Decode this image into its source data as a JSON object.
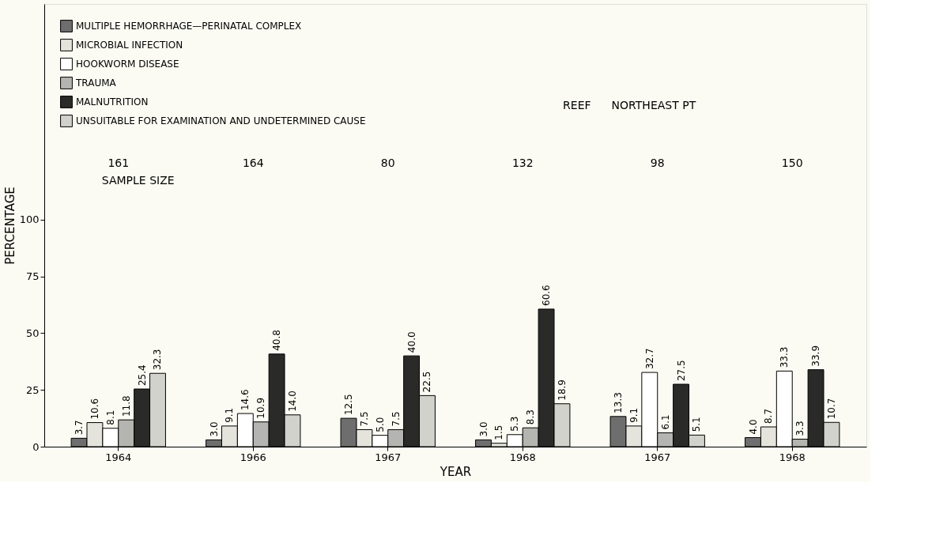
{
  "chart_data": {
    "type": "bar",
    "categories": [
      "1964",
      "1966",
      "1967",
      "1968",
      "1967",
      "1968"
    ],
    "series": [
      {
        "name": "MULTIPLE HEMORRHAGE—PERINATAL COMPLEX",
        "color": "#6e6e6e",
        "values": [
          3.7,
          3.0,
          12.5,
          3.0,
          13.3,
          4.0
        ],
        "value_labels": [
          "3.7",
          "3.0",
          "12.5",
          "3.0",
          "13.3",
          "4.0"
        ]
      },
      {
        "name": "MICROBIAL INFECTION",
        "color": "#e4e4dc",
        "values": [
          10.6,
          9.1,
          7.5,
          1.5,
          9.1,
          8.7
        ],
        "value_labels": [
          "10.6",
          "9.1",
          "7.5",
          "1.5",
          "9.1",
          "8.7"
        ]
      },
      {
        "name": "HOOKWORM DISEASE",
        "color": "#ffffff",
        "values": [
          8.1,
          14.6,
          5.0,
          5.3,
          32.7,
          33.3
        ],
        "value_labels": [
          "8.1",
          "14.6",
          "5.0",
          "5.3",
          "32.7",
          "33.3"
        ]
      },
      {
        "name": "TRAUMA",
        "color": "#b4b4b0",
        "values": [
          11.8,
          10.9,
          7.5,
          8.3,
          6.1,
          3.3
        ],
        "value_labels": [
          "11.8",
          "10.9",
          "7.5",
          "8.3",
          "6.1",
          "3.3"
        ]
      },
      {
        "name": "MALNUTRITION",
        "color": "#2a2a28",
        "values": [
          25.4,
          40.8,
          40.0,
          60.6,
          27.5,
          33.9
        ],
        "value_labels": [
          "25.4",
          "40.8",
          "40.0",
          "60.6",
          "27.5",
          "33.9"
        ]
      },
      {
        "name": "UNSUITABLE FOR EXAMINATION AND UNDETERMINED CAUSE",
        "color": "#d2d2cc",
        "values": [
          32.3,
          14.0,
          22.5,
          18.9,
          5.1,
          10.7
        ],
        "value_labels": [
          "32.3",
          "14.0",
          "22.5",
          "18.9",
          "5.1",
          "10.7"
        ]
      }
    ],
    "xlabel": "YEAR",
    "ylabel": "PERCENTAGE",
    "ylim": [
      0,
      195
    ],
    "yticks": [
      0,
      25,
      50,
      75,
      100
    ],
    "grid": false,
    "legend": "top left",
    "annotations": [
      "161",
      "164",
      "80",
      "132",
      "98",
      "150",
      "SAMPLE SIZE",
      "REEF",
      "NORTHEAST PT"
    ]
  }
}
